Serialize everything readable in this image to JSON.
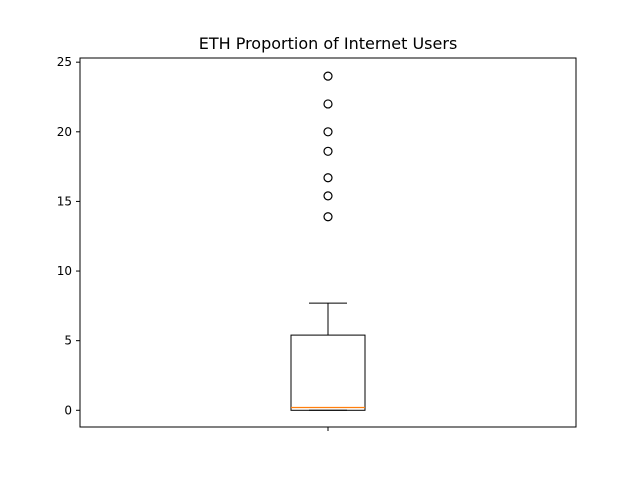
{
  "chart_data": {
    "type": "box",
    "title": "ETH Proportion of Internet Users",
    "xlabel": "",
    "ylabel": "",
    "ylim": [
      -1.2,
      25.3
    ],
    "yticks": [
      0,
      5,
      10,
      15,
      20,
      25
    ],
    "xtick_labels": [
      ""
    ],
    "grid": false,
    "boxes": [
      {
        "name": "",
        "whisker_low": 0.0,
        "q1": 0.0,
        "median": 0.2,
        "q3": 5.4,
        "whisker_high": 7.7,
        "outliers": [
          13.9,
          15.4,
          16.7,
          18.6,
          20.0,
          22.0,
          24.0
        ]
      }
    ],
    "colors": {
      "box": "#000000",
      "median": "#ff7f0e",
      "outlier_edge": "#000000"
    }
  }
}
